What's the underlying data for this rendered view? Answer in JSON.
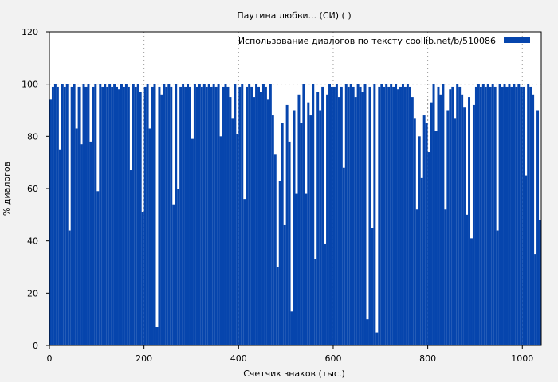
{
  "chart_data": {
    "type": "bar",
    "title": "Паутина любви... (СИ) ( )",
    "xlabel": "Счетчик знаков (тыс.)",
    "ylabel": "% диалогов",
    "legend": {
      "label": "Использование диалогов по тексту  coollib.net/b/510086",
      "placement": "top-right"
    },
    "series_color": "#0645ad",
    "xlim": [
      0,
      1040
    ],
    "ylim": [
      0,
      120
    ],
    "xticks": [
      0,
      200,
      400,
      600,
      800,
      1000
    ],
    "yticks": [
      0,
      20,
      40,
      60,
      80,
      100,
      120
    ],
    "grid": "dotted at x ticks and y=100",
    "x_step": 5,
    "values": [
      94,
      99,
      100,
      99,
      75,
      100,
      99,
      100,
      44,
      99,
      100,
      83,
      99,
      77,
      100,
      99,
      100,
      78,
      99,
      100,
      59,
      100,
      99,
      100,
      99,
      100,
      99,
      100,
      99,
      98,
      100,
      99,
      100,
      99,
      67,
      100,
      99,
      100,
      97,
      51,
      99,
      100,
      83,
      99,
      100,
      7,
      99,
      96,
      100,
      99,
      100,
      99,
      54,
      100,
      60,
      99,
      100,
      99,
      100,
      99,
      79,
      100,
      99,
      100,
      99,
      100,
      99,
      100,
      99,
      100,
      99,
      100,
      80,
      99,
      100,
      99,
      95,
      87,
      100,
      81,
      99,
      100,
      56,
      99,
      100,
      99,
      95,
      100,
      99,
      97,
      100,
      99,
      94,
      100,
      88,
      73,
      30,
      63,
      85,
      46,
      92,
      78,
      13,
      90,
      58,
      96,
      85,
      100,
      58,
      93,
      88,
      100,
      33,
      97,
      90,
      99,
      39,
      96,
      100,
      99,
      99,
      100,
      95,
      99,
      68,
      100,
      99,
      100,
      99,
      95,
      100,
      99,
      97,
      100,
      10,
      99,
      45,
      100,
      5,
      99,
      100,
      99,
      100,
      99,
      100,
      99,
      100,
      98,
      99,
      100,
      99,
      100,
      99,
      95,
      87,
      52,
      80,
      64,
      88,
      85,
      74,
      93,
      100,
      82,
      99,
      96,
      100,
      52,
      90,
      98,
      99,
      87,
      100,
      99,
      96,
      91,
      50,
      95,
      41,
      92,
      99,
      100,
      99,
      100,
      99,
      100,
      99,
      100,
      99,
      44,
      100,
      99,
      100,
      99,
      100,
      99,
      100,
      99,
      100,
      99,
      99,
      65,
      100,
      99,
      96,
      35,
      90,
      48
    ]
  }
}
